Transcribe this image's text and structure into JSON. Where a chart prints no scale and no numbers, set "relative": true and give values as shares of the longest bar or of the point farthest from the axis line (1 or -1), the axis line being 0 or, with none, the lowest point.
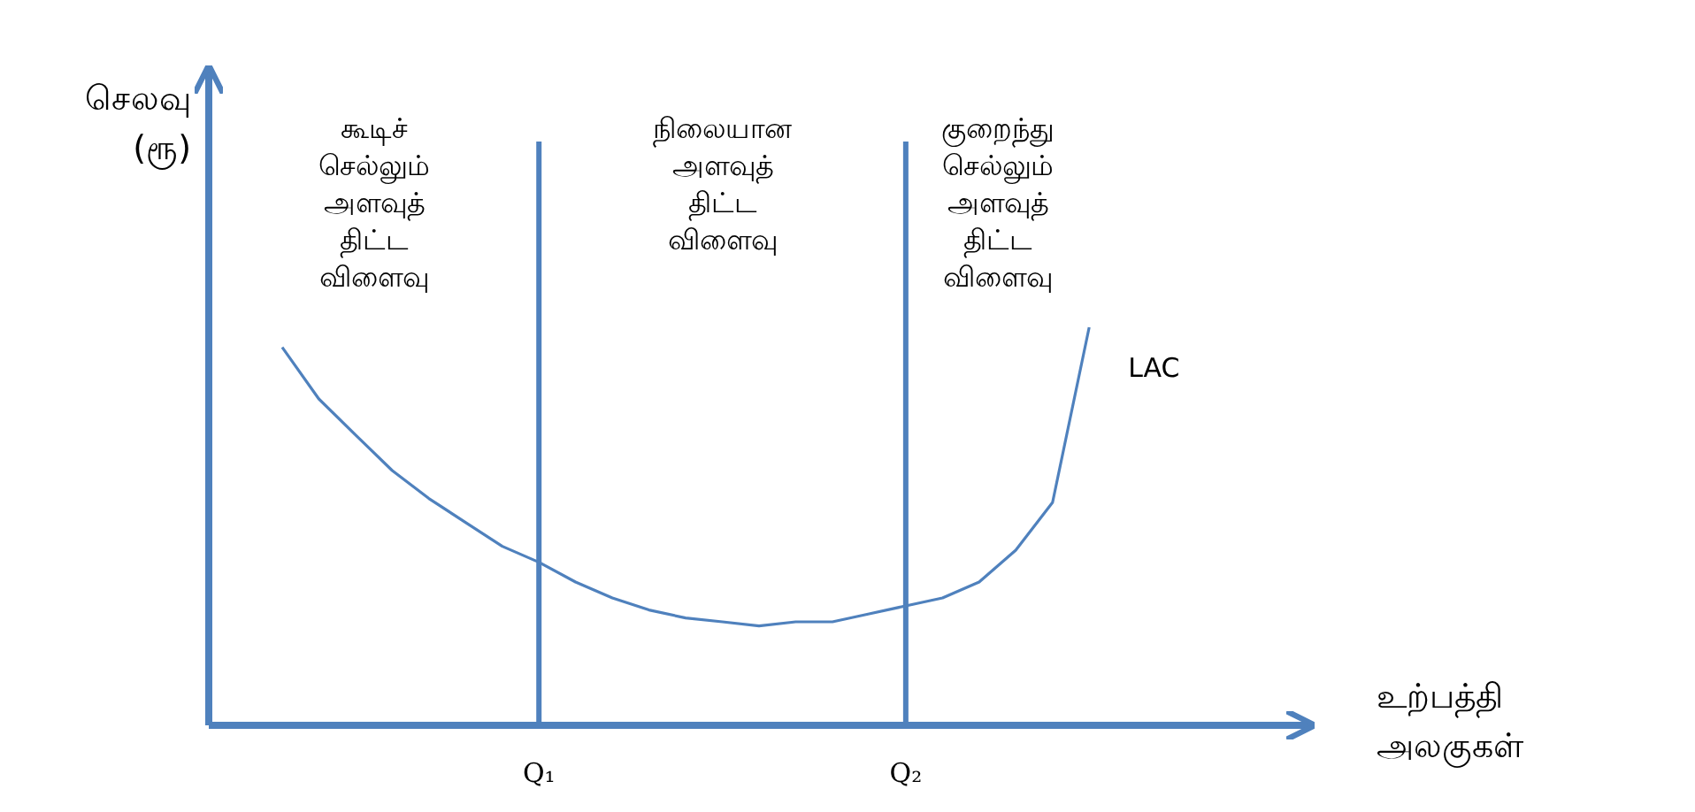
{
  "chart_data": {
    "type": "line",
    "relative": true,
    "xlabel": "உற்பத்தி அலகுகள்",
    "ylabel": "செலவு (ரூ)",
    "categories": [
      null,
      null,
      null,
      null,
      null,
      null,
      null,
      null,
      null,
      "Q₁",
      null,
      null,
      null,
      null,
      null,
      null,
      null,
      null,
      null,
      "Q₂",
      null,
      null,
      null,
      null,
      null,
      null,
      null,
      null,
      null,
      null,
      null
    ],
    "ref_lines": [
      {
        "axis": "x",
        "value": "Q₁",
        "color": "#4f81bd"
      },
      {
        "axis": "x",
        "value": "Q₂",
        "color": "#4f81bd"
      }
    ],
    "annotations": [
      "கூடிச் செல்லும் அளவுத் திட்ட விளைவு",
      "நிலையான அளவுத் திட்ட விளைவு",
      "குறைந்து செல்லும் அளவுத் திட்ட விளைவு"
    ],
    "series": [
      {
        "name": "LAC",
        "color": "#4f81bd",
        "values": [
          null,
          null,
          0.95,
          0.82,
          0.73,
          0.64,
          0.57,
          0.51,
          0.45,
          0.41,
          0.36,
          0.32,
          0.29,
          0.27,
          0.26,
          0.25,
          0.26,
          0.26,
          0.28,
          0.3,
          0.32,
          0.36,
          0.44,
          0.56,
          1.0,
          null,
          null,
          null,
          null,
          null,
          null
        ]
      }
    ]
  }
}
